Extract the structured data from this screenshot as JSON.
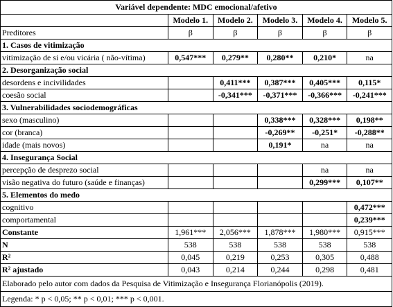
{
  "table": {
    "title": "Variável dependente: MDC emocional/afetivo",
    "models": [
      "Modelo 1.",
      "Modelo 2.",
      "Modelo 3.",
      "Modelo 4.",
      "Modelo 5."
    ],
    "predictors_label": "Preditores",
    "beta": [
      "β",
      "β",
      "β",
      "β",
      "β"
    ],
    "rows": [
      {
        "type": "section",
        "label": "1. Casos de vitimização"
      },
      {
        "type": "data",
        "label": "vitimização de si e/ou vicária ( não-vítima)",
        "values": [
          "0,547***",
          "0,279**",
          "0,280**",
          "0,210*",
          "na"
        ],
        "bold": [
          true,
          true,
          true,
          true,
          false
        ]
      },
      {
        "type": "section",
        "label": "2. Desorganização social"
      },
      {
        "type": "data",
        "label": "desordens e incivilidades",
        "values": [
          "",
          "0,411***",
          "0,387***",
          "0,405***",
          "0,115*"
        ],
        "bold": [
          false,
          true,
          true,
          true,
          true
        ]
      },
      {
        "type": "data",
        "label": "coesão social",
        "values": [
          "",
          "-0,341***",
          "-0,371***",
          "-0,366***",
          "-0,241***"
        ],
        "bold": [
          false,
          true,
          true,
          true,
          true
        ]
      },
      {
        "type": "section",
        "label": "3. Vulnerabilidades sociodemográficas"
      },
      {
        "type": "data",
        "label": "sexo (masculino)",
        "values": [
          "",
          "",
          "0,338***",
          "0,328***",
          "0,198**"
        ],
        "bold": [
          false,
          false,
          true,
          true,
          true
        ]
      },
      {
        "type": "data",
        "label": "cor (branca)",
        "values": [
          "",
          "",
          "-0,269**",
          "-0,251*",
          "-0,288**"
        ],
        "bold": [
          false,
          false,
          true,
          true,
          true
        ]
      },
      {
        "type": "data",
        "label": "idade (mais novos)",
        "values": [
          "",
          "",
          "0,191*",
          "na",
          "na"
        ],
        "bold": [
          false,
          false,
          true,
          false,
          false
        ]
      },
      {
        "type": "section",
        "label": "4. Insegurança Social"
      },
      {
        "type": "data",
        "label": "percepção de desprezo social",
        "values": [
          "",
          "",
          "",
          "na",
          "na"
        ],
        "bold": [
          false,
          false,
          false,
          false,
          false
        ]
      },
      {
        "type": "data",
        "label": "visão negativa do futuro (saúde e finanças)",
        "values": [
          "",
          "",
          "",
          "0,299***",
          "0,107**"
        ],
        "bold": [
          false,
          false,
          false,
          true,
          true
        ]
      },
      {
        "type": "section",
        "label": "5. Elementos do medo"
      },
      {
        "type": "data",
        "label": "cognitivo",
        "values": [
          "",
          "",
          "",
          "",
          "0,472***"
        ],
        "bold": [
          false,
          false,
          false,
          false,
          true
        ]
      },
      {
        "type": "data",
        "label": "comportamental",
        "values": [
          "",
          "",
          "",
          "",
          "0,239***"
        ],
        "bold": [
          false,
          false,
          false,
          false,
          true
        ]
      },
      {
        "type": "stat",
        "label": "Constante",
        "values": [
          "1,961***",
          "2,056***",
          "1,878***",
          "1,980***",
          "0,915***"
        ]
      },
      {
        "type": "stat",
        "label": "N",
        "values": [
          "538",
          "538",
          "538",
          "538",
          "538"
        ]
      },
      {
        "type": "stat",
        "label": "R²",
        "values": [
          "0,045",
          "0,219",
          "0,253",
          "0,305",
          "0,488"
        ]
      },
      {
        "type": "stat",
        "label": "R² ajustado",
        "values": [
          "0,043",
          "0,214",
          "0,244",
          "0,298",
          "0,481"
        ]
      }
    ],
    "source": "Elaborado pelo autor com dados da Pesquisa de Vitimização e Insegurança Florianópolis (2019).",
    "legend": "Legenda: * p < 0,05; ** p < 0,01; *** p < 0,001."
  }
}
